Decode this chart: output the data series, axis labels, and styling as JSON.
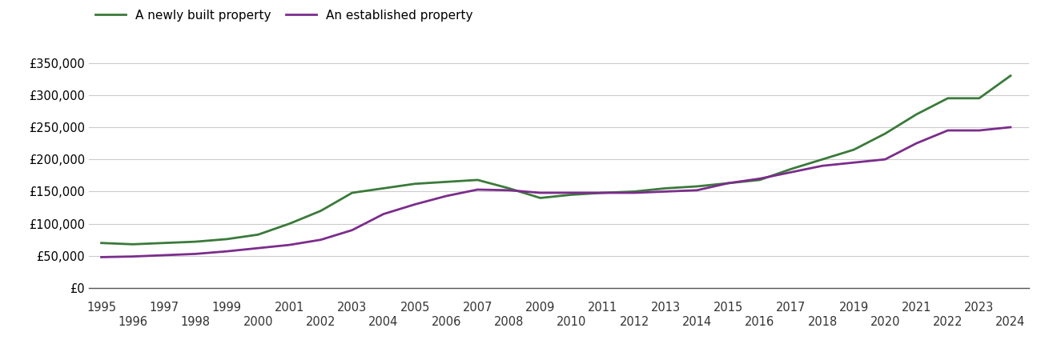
{
  "title": "",
  "legend_new": "A newly built property",
  "legend_est": "An established property",
  "color_new": "#3a7a3a",
  "color_est": "#7b2d8b",
  "background_color": "#ffffff",
  "grid_color": "#cccccc",
  "years": [
    1995,
    1996,
    1997,
    1998,
    1999,
    2000,
    2001,
    2002,
    2003,
    2004,
    2005,
    2006,
    2007,
    2008,
    2009,
    2010,
    2011,
    2012,
    2013,
    2014,
    2015,
    2016,
    2017,
    2018,
    2019,
    2020,
    2021,
    2022,
    2023,
    2024
  ],
  "new_build": [
    70000,
    68000,
    70000,
    72000,
    76000,
    83000,
    100000,
    120000,
    148000,
    155000,
    162000,
    165000,
    168000,
    155000,
    140000,
    145000,
    148000,
    150000,
    155000,
    158000,
    163000,
    168000,
    185000,
    200000,
    215000,
    240000,
    270000,
    295000,
    295000,
    330000
  ],
  "established": [
    48000,
    49000,
    51000,
    53000,
    57000,
    62000,
    67000,
    75000,
    90000,
    115000,
    130000,
    143000,
    153000,
    152000,
    148000,
    148000,
    148000,
    148000,
    150000,
    152000,
    163000,
    170000,
    180000,
    190000,
    195000,
    200000,
    225000,
    245000,
    245000,
    250000
  ],
  "ylim": [
    0,
    375000
  ],
  "yticks": [
    0,
    50000,
    100000,
    150000,
    200000,
    250000,
    300000,
    350000
  ],
  "ytick_labels": [
    "£0",
    "£50,000",
    "£100,000",
    "£150,000",
    "£200,000",
    "£250,000",
    "£300,000",
    "£350,000"
  ],
  "xlim_start": 1994.6,
  "xlim_end": 2024.6,
  "xtick_odd": [
    1995,
    1997,
    1999,
    2001,
    2003,
    2005,
    2007,
    2009,
    2011,
    2013,
    2015,
    2017,
    2019,
    2021,
    2023
  ],
  "xtick_even": [
    1996,
    1998,
    2000,
    2002,
    2004,
    2006,
    2008,
    2010,
    2012,
    2014,
    2016,
    2018,
    2020,
    2022,
    2024
  ],
  "line_width": 2.0,
  "font_size_ticks": 10.5,
  "font_size_legend": 11
}
